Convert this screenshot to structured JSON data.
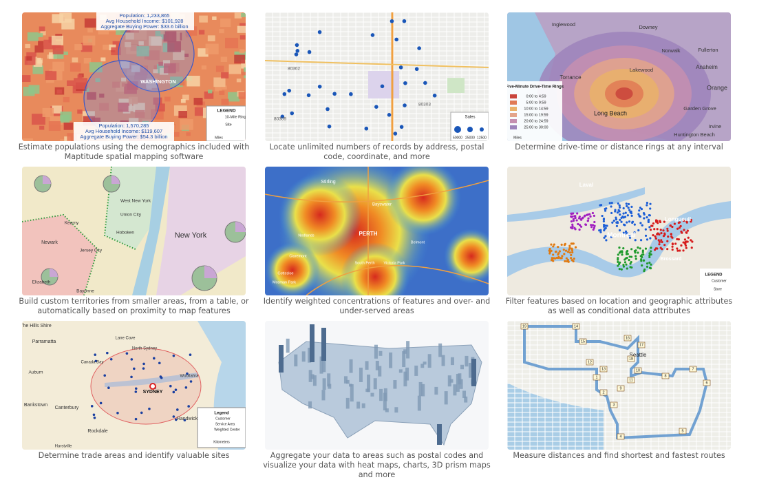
{
  "tiles": [
    {
      "caption": "Estimate populations using the demographics included with Maptitude spatial mapping software",
      "map_labels": [
        "Population: 1,233,865",
        "Avg Household Income: $101,928",
        "Aggregate Buying Power: $33.6 billion",
        "WASHINGTON",
        "Population: 1,570,285",
        "Avg Household Income: $119,607",
        "Aggregate Buying Power: $54.3 billion",
        "LEGEND",
        "10-Mile Ring",
        "Site",
        "Miles"
      ]
    },
    {
      "caption": "Locate unlimited numbers of records by address, postal code, coordinate, and more",
      "map_labels": [
        "80302",
        "80303",
        "80309",
        "Sales",
        "50000",
        "25000",
        "12500"
      ]
    },
    {
      "caption": "Determine drive-time or distance rings at any interval",
      "map_labels": [
        "Inglewood",
        "Downey",
        "Norwalk",
        "Torrance",
        "Lakewood",
        "Long Beach",
        "Anaheim",
        "Orange",
        "Garden Grove",
        "Huntington Beach",
        "Irvine",
        "Fullerton",
        "Five-Minute Drive-Time Rings",
        "0:00 to 4:59",
        "5:00 to 9:59",
        "10:00 to 14:59",
        "15:00 to 19:59",
        "20:00 to 24:59",
        "25:00 to 30:00",
        "Miles"
      ]
    },
    {
      "caption": "Build custom territories from smaller areas, from a table, or automatically based on proximity to map features",
      "map_labels": [
        "West New York",
        "Kearny",
        "Union City",
        "Hoboken",
        "Newark",
        "Jersey City",
        "New York",
        "Elizabeth",
        "Bayonne"
      ]
    },
    {
      "caption": "Identify weighted concentrations of features and over- and under-served areas",
      "map_labels": [
        "Stirling",
        "Bayswater",
        "PERTH",
        "Nedlands",
        "Claremont",
        "Belmont",
        "South Perth",
        "Victoria Park",
        "Cottesloe",
        "Mosman Park"
      ]
    },
    {
      "caption": "Filter features based on location and geographic attributes as well as conditional data attributes",
      "map_labels": [
        "Laval",
        "Montreal",
        "Longueuil",
        "Brossard",
        "LEGEND",
        "Customer",
        "Store"
      ]
    },
    {
      "caption": "Determine trade areas and identify valuable sites",
      "map_labels": [
        "The Hills Shire",
        "Parramatta",
        "Auburn",
        "Canada Bay",
        "Lane Cove",
        "North Sydney",
        "SYDNEY",
        "Woollahra",
        "Bankstown",
        "Canterbury",
        "Randwick",
        "Rockdale",
        "Hurstville",
        "Legend",
        "Customer",
        "Service Area",
        "Weighted Center",
        "Kilometers"
      ]
    },
    {
      "caption": "Aggregate your data to areas such as postal codes and visualize your data with heat maps, charts, 3D prism maps and more",
      "map_labels": []
    },
    {
      "caption": "Measure distances and find shortest and fastest routes",
      "map_labels": [
        "Seattle",
        "19",
        "14",
        "15",
        "12",
        "13",
        "16",
        "17",
        "18",
        "10",
        "11",
        "9",
        "8",
        "7",
        "6",
        "5",
        "4",
        "3",
        "2",
        "1"
      ]
    }
  ]
}
